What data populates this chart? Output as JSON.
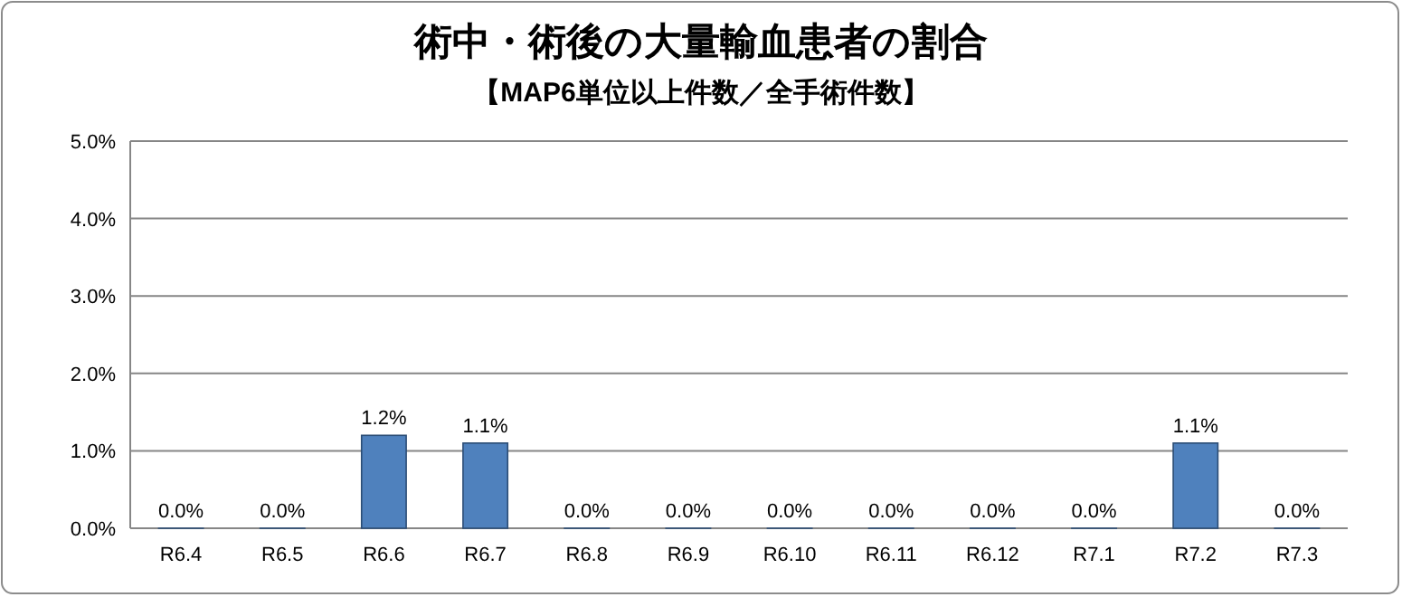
{
  "chart_data": {
    "type": "bar",
    "title": "術中・術後の大量輸血患者の割合",
    "subtitle": "【MAP6単位以上件数／全手術件数】",
    "categories": [
      "R6.4",
      "R6.5",
      "R6.6",
      "R6.7",
      "R6.8",
      "R6.9",
      "R6.10",
      "R6.11",
      "R6.12",
      "R7.1",
      "R7.2",
      "R7.3"
    ],
    "values": [
      0,
      0,
      1.2,
      1.1,
      0,
      0,
      0,
      0,
      0,
      0,
      1.1,
      0
    ],
    "value_labels": [
      "0.0%",
      "0.0%",
      "1.2%",
      "1.1%",
      "0.0%",
      "0.0%",
      "0.0%",
      "0.0%",
      "0.0%",
      "0.0%",
      "1.1%",
      "0.0%"
    ],
    "color": "#4f81bd",
    "ylim": [
      0,
      5
    ],
    "yticks": [
      {
        "value": 0,
        "label": "0.0%"
      },
      {
        "value": 1,
        "label": "1.0%"
      },
      {
        "value": 2,
        "label": "2.0%"
      },
      {
        "value": 3,
        "label": "3.0%"
      },
      {
        "value": 4,
        "label": "4.0%"
      },
      {
        "value": 5,
        "label": "5.0%"
      }
    ],
    "grid": "y"
  }
}
